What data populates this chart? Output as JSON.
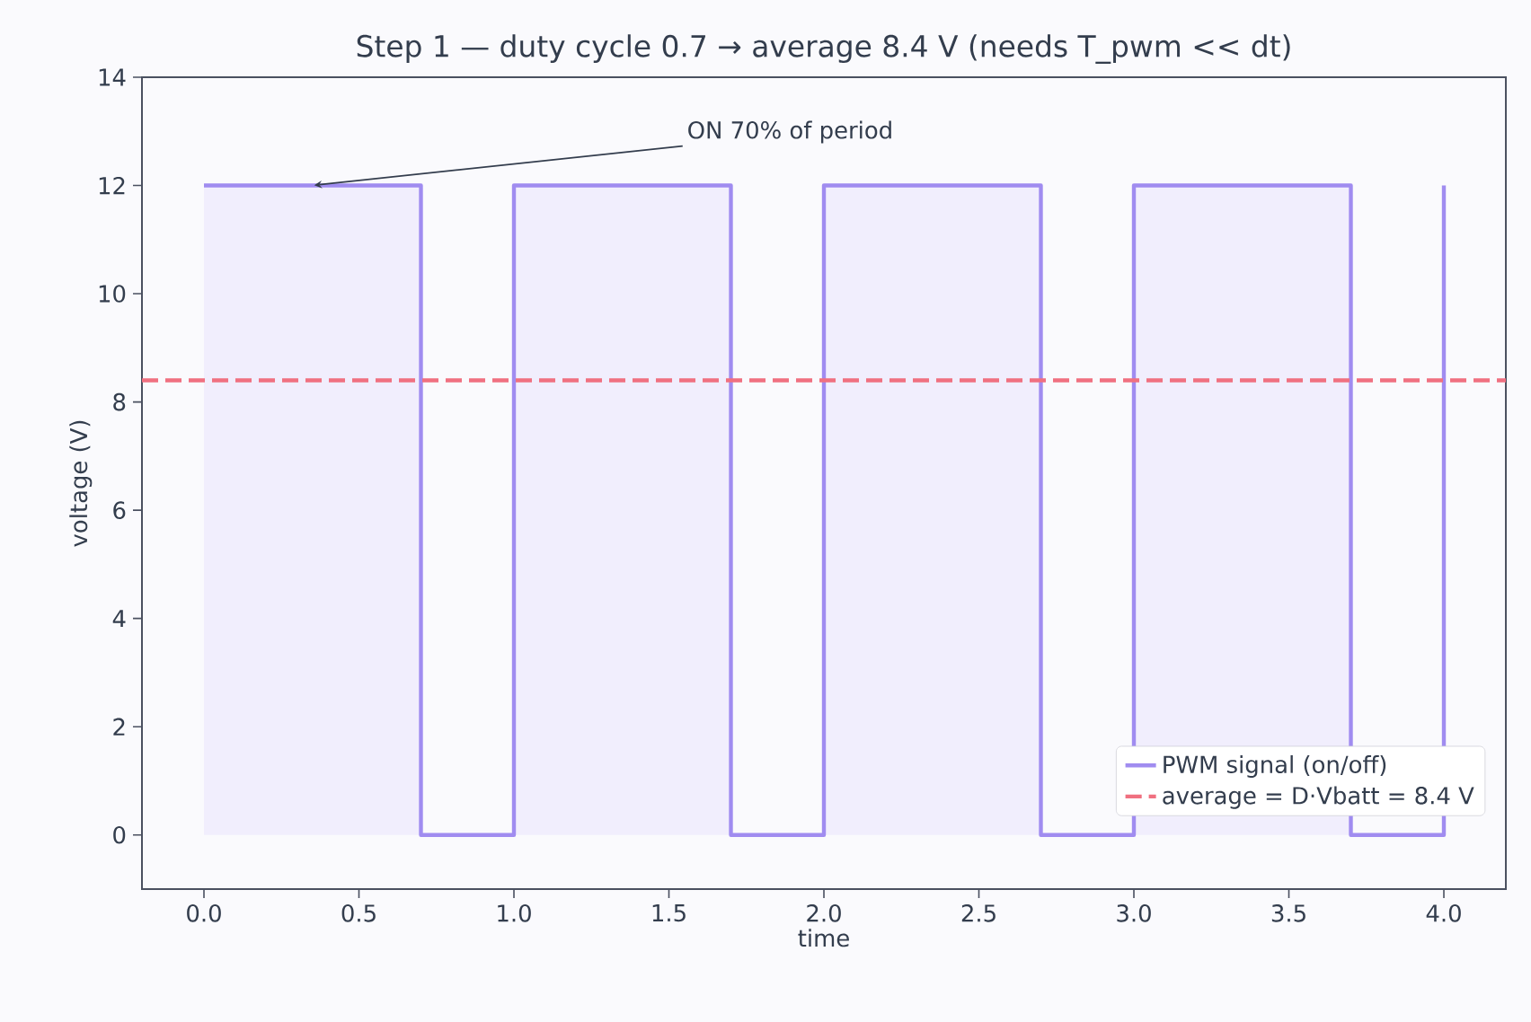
{
  "chart_data": {
    "type": "area",
    "title": "Step 1 — duty cycle 0.7 → average 8.4 V (needs T_pwm << dt)",
    "xlabel": "time",
    "ylabel": "voltage (V)",
    "series": [
      {
        "name": "PWM signal (on/off)",
        "color": "#a08cf0",
        "x": [
          0,
          0.7,
          0.7,
          1.0,
          1.0,
          1.7,
          1.7,
          2.0,
          2.0,
          2.7,
          2.7,
          3.0,
          3.0,
          3.7,
          3.7,
          4.0,
          4.0
        ],
        "values": [
          12,
          12,
          0,
          0,
          12,
          12,
          0,
          0,
          12,
          12,
          0,
          0,
          12,
          12,
          0,
          0,
          12
        ]
      }
    ],
    "ref_lines": [
      {
        "axis": "y",
        "value": 8.4,
        "label": "average = D·Vbatt = 8.4 V",
        "color": "#f07080",
        "line_style": "dashed"
      }
    ],
    "annotations": [
      {
        "text": "ON 70% of period",
        "x": 0.35,
        "y": 12
      }
    ],
    "xlim": [
      -0.2,
      4.2
    ],
    "ylim": [
      -1,
      14
    ],
    "xticks": [
      {
        "value": 0,
        "label": "0.0"
      },
      {
        "value": 0.5,
        "label": "0.5"
      },
      {
        "value": 1,
        "label": "1.0"
      },
      {
        "value": 1.5,
        "label": "1.5"
      },
      {
        "value": 2,
        "label": "2.0"
      },
      {
        "value": 2.5,
        "label": "2.5"
      },
      {
        "value": 3,
        "label": "3.0"
      },
      {
        "value": 3.5,
        "label": "3.5"
      },
      {
        "value": 4,
        "label": "4.0"
      }
    ],
    "yticks": [
      0,
      2,
      4,
      6,
      8,
      10,
      12,
      14
    ],
    "legend": "bottom right",
    "grid": false
  }
}
